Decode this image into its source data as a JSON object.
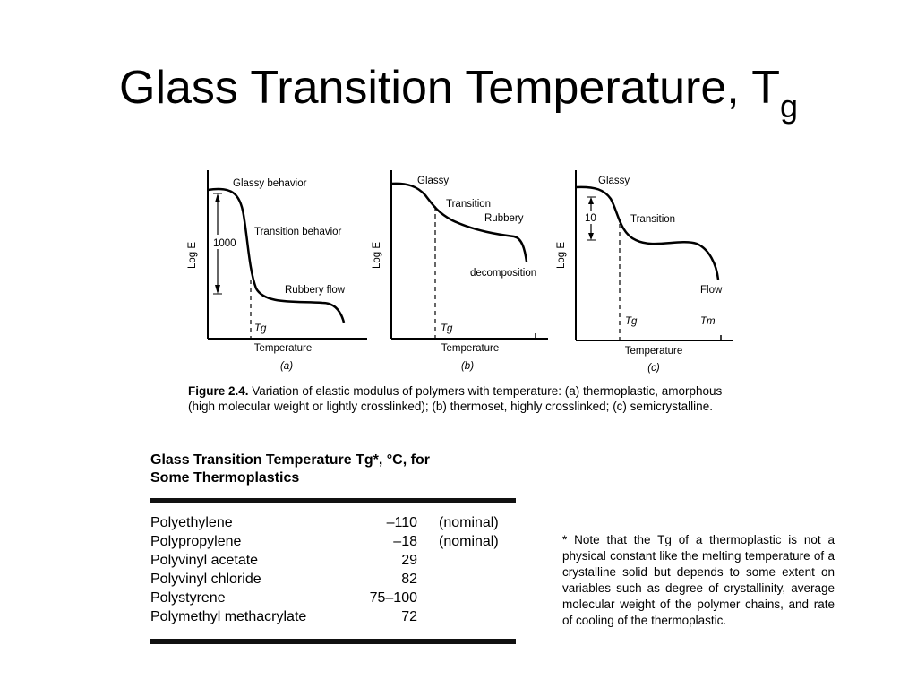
{
  "title": {
    "main": "Glass Transition Temperature, T",
    "sub": "g"
  },
  "figure": {
    "caption_label": "Figure 2.4.",
    "caption_text": "Variation of elastic modulus of polymers with temperature: (a) thermoplastic, amorphous (high molecular weight or lightly crosslinked); (b) thermoset, highly crosslinked; (c) semicrystalline.",
    "panels": [
      {
        "id": "a",
        "ylabel": "Log E",
        "xlabel": "Temperature",
        "panel_label": "(a)",
        "annotations": [
          "Glassy behavior",
          "Transition behavior",
          "Rubbery flow",
          "1000",
          "Tg"
        ]
      },
      {
        "id": "b",
        "ylabel": "Log E",
        "xlabel": "Temperature",
        "panel_label": "(b)",
        "annotations": [
          "Glassy",
          "Transition",
          "Rubbery",
          "decomposition",
          "Tg"
        ]
      },
      {
        "id": "c",
        "ylabel": "Log E",
        "xlabel": "Temperature",
        "panel_label": "(c)",
        "annotations": [
          "Glassy",
          "10",
          "Transition",
          "Flow",
          "Tg",
          "Tm"
        ]
      }
    ]
  },
  "table": {
    "title_line1": "Glass Transition Temperature Tg*, °C, for",
    "title_line2": "Some Thermoplastics",
    "rows": [
      {
        "name": "Polyethylene",
        "value": "–110",
        "note": "(nominal)"
      },
      {
        "name": "Polypropylene",
        "value": "–18",
        "note": "(nominal)"
      },
      {
        "name": "Polyvinyl acetate",
        "value": "29",
        "note": ""
      },
      {
        "name": "Polyvinyl chloride",
        "value": "82",
        "note": ""
      },
      {
        "name": "Polystyrene",
        "value": "75–100",
        "note": ""
      },
      {
        "name": "Polymethyl methacrylate",
        "value": "72",
        "note": ""
      }
    ],
    "footnote": "* Note that the Tg of a thermoplastic is not a physical constant like the melting temperature of a crystalline solid but depends to some extent on variables such as degree of crystallinity, average molecular weight of the polymer chains, and rate of cooling of the thermoplastic."
  }
}
